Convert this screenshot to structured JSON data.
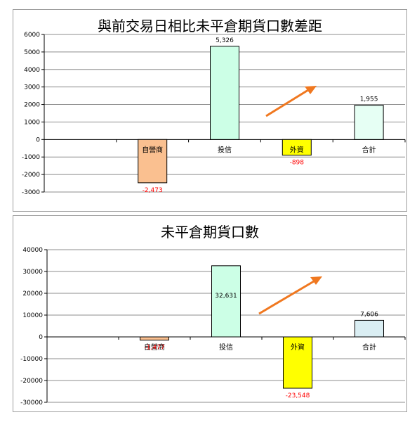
{
  "charts": [
    {
      "title": "與前交易日相比未平倉期貨口數差距",
      "categories": [
        "自營商",
        "投信",
        "外資",
        "合計"
      ],
      "values": [
        -2473,
        5326,
        -898,
        1955
      ],
      "value_labels": [
        "-2,473",
        "5,326",
        "-898",
        "1,955"
      ],
      "yticks": [
        6000,
        5000,
        4000,
        3000,
        2000,
        1000,
        0,
        -1000,
        -2000,
        -3000
      ],
      "ylim": [
        -3000,
        6000
      ],
      "bar_colors": [
        "#fac090",
        "#ccffe6",
        "#ffff00",
        "#e6fff4"
      ],
      "label_colors": [
        "#ff0000",
        "#000000",
        "#ff0000",
        "#000000"
      ]
    },
    {
      "title": "未平倉期貨口數",
      "categories": [
        "自營商",
        "投信",
        "外資",
        "合計"
      ],
      "values": [
        -1477,
        32631,
        -23548,
        7606
      ],
      "value_labels": [
        "-1,477",
        "32,631",
        "-23,548",
        "7,606"
      ],
      "yticks": [
        40000,
        30000,
        20000,
        10000,
        0,
        -10000,
        -20000,
        -30000
      ],
      "ylim": [
        -30000,
        40000
      ],
      "bar_colors": [
        "#fac090",
        "#ccffe6",
        "#ffff00",
        "#daeef3"
      ],
      "label_colors": [
        "#ff0000",
        "#000000",
        "#ff0000",
        "#000000"
      ]
    }
  ],
  "chart_data": [
    {
      "type": "bar",
      "title": "與前交易日相比未平倉期貨口數差距",
      "categories": [
        "自營商",
        "投信",
        "外資",
        "合計"
      ],
      "values": [
        -2473,
        5326,
        -898,
        1955
      ],
      "ylim": [
        -3000,
        6000
      ],
      "grid": true,
      "legend": "none"
    },
    {
      "type": "bar",
      "title": "未平倉期貨口數",
      "categories": [
        "自營商",
        "投信",
        "外資",
        "合計"
      ],
      "values": [
        -1477,
        32631,
        -23548,
        7606
      ],
      "ylim": [
        -30000,
        40000
      ],
      "grid": true,
      "legend": "none"
    }
  ],
  "arrow_color": "#f07820"
}
